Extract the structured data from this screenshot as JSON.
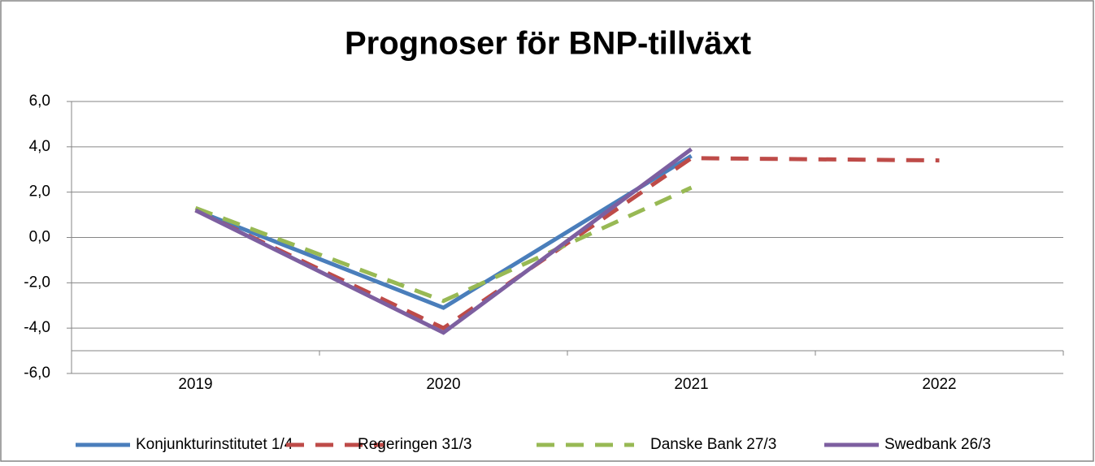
{
  "chart_data": {
    "type": "line",
    "title": "Prognoser för BNP-tillväxt",
    "categories": [
      "2019",
      "2020",
      "2021",
      "2022"
    ],
    "series": [
      {
        "name": "Konjunkturinstitutet 1/4",
        "color": "#4a7ebb",
        "dash": "solid",
        "values": [
          1.2,
          -3.1,
          3.6,
          null
        ]
      },
      {
        "name": "Regeringen 31/3",
        "color": "#be4b48",
        "dash": "dashed",
        "values": [
          1.2,
          -4.0,
          3.5,
          3.4
        ]
      },
      {
        "name": "Danske Bank 27/3",
        "color": "#98b954",
        "dash": "dashed",
        "values": [
          1.3,
          -2.8,
          2.2,
          null
        ]
      },
      {
        "name": "Swedbank 26/3",
        "color": "#7d5fa0",
        "dash": "solid",
        "values": [
          1.2,
          -4.2,
          3.9,
          null
        ]
      }
    ],
    "ylim": [
      -6,
      6
    ],
    "yticks": [
      {
        "value": 6,
        "label": "6,0"
      },
      {
        "value": 4,
        "label": "4,0"
      },
      {
        "value": 2,
        "label": "2,0"
      },
      {
        "value": 0,
        "label": "0,0"
      },
      {
        "value": -2,
        "label": "-2,0"
      },
      {
        "value": -4,
        "label": "-4,0"
      },
      {
        "value": -6,
        "label": "-6,0"
      }
    ],
    "grid": true,
    "legend": "bottom"
  }
}
